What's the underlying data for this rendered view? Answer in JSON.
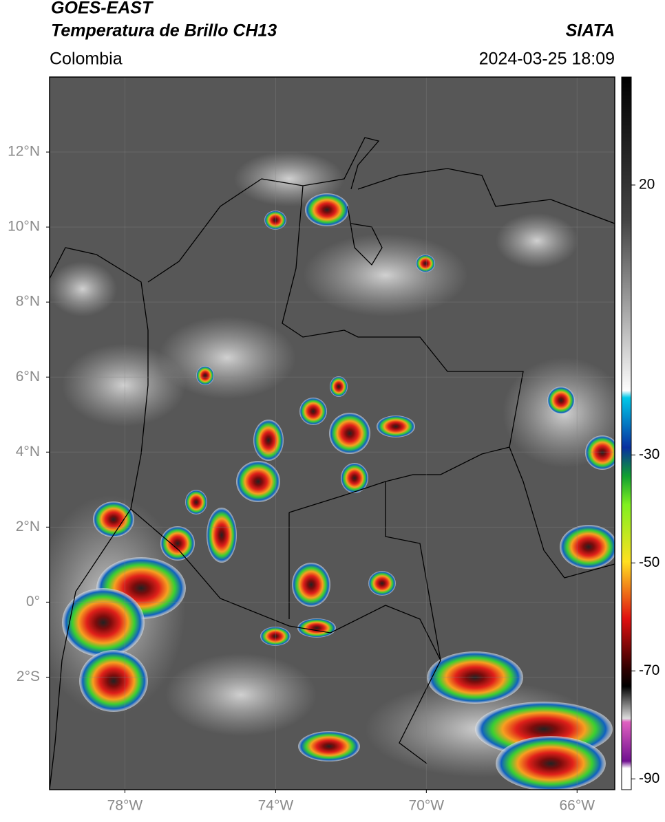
{
  "header": {
    "title": "GOES-EAST",
    "subtitle": "Temperatura de Brillo CH13",
    "region": "Colombia",
    "source": "SIATA",
    "timestamp": "2024-03-25 18:09"
  },
  "map": {
    "xlim": [
      -80,
      -65
    ],
    "ylim": [
      -5,
      14
    ],
    "yticks": [
      {
        "value": 12,
        "label": "12°N"
      },
      {
        "value": 10,
        "label": "10°N"
      },
      {
        "value": 8,
        "label": "8°N"
      },
      {
        "value": 6,
        "label": "6°N"
      },
      {
        "value": 4,
        "label": "4°N"
      },
      {
        "value": 2,
        "label": "2°N"
      },
      {
        "value": 0,
        "label": "0°"
      },
      {
        "value": -2,
        "label": "2°S"
      }
    ],
    "xticks": [
      {
        "value": -78,
        "label": "78°W"
      },
      {
        "value": -74,
        "label": "74°W"
      },
      {
        "value": -70,
        "label": "70°W"
      },
      {
        "value": -66,
        "label": "66°W"
      }
    ]
  },
  "colorbar": {
    "lim": [
      -92,
      40
    ],
    "ticks": [
      20,
      -30,
      -50,
      -70,
      -90
    ]
  }
}
